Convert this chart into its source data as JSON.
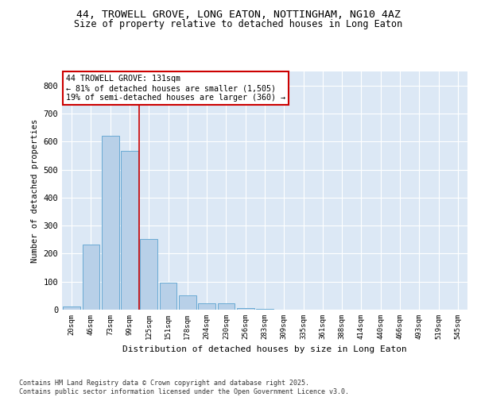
{
  "title_line1": "44, TROWELL GROVE, LONG EATON, NOTTINGHAM, NG10 4AZ",
  "title_line2": "Size of property relative to detached houses in Long Eaton",
  "xlabel": "Distribution of detached houses by size in Long Eaton",
  "ylabel": "Number of detached properties",
  "categories": [
    "20sqm",
    "46sqm",
    "73sqm",
    "99sqm",
    "125sqm",
    "151sqm",
    "178sqm",
    "204sqm",
    "230sqm",
    "256sqm",
    "283sqm",
    "309sqm",
    "335sqm",
    "361sqm",
    "388sqm",
    "414sqm",
    "440sqm",
    "466sqm",
    "493sqm",
    "519sqm",
    "545sqm"
  ],
  "values": [
    10,
    233,
    620,
    567,
    252,
    97,
    50,
    22,
    22,
    7,
    2,
    0,
    0,
    0,
    0,
    0,
    0,
    0,
    0,
    0,
    0
  ],
  "bar_color": "#b8d0e8",
  "bar_edge_color": "#6aaad4",
  "vline_index": 4,
  "vline_color": "#cc0000",
  "annotation_text": "44 TROWELL GROVE: 131sqm\n← 81% of detached houses are smaller (1,505)\n19% of semi-detached houses are larger (360) →",
  "annotation_box_edgecolor": "#cc0000",
  "ylim": [
    0,
    850
  ],
  "yticks": [
    0,
    100,
    200,
    300,
    400,
    500,
    600,
    700,
    800
  ],
  "footnote": "Contains HM Land Registry data © Crown copyright and database right 2025.\nContains public sector information licensed under the Open Government Licence v3.0.",
  "background_color": "#dce8f5",
  "grid_color": "#ffffff",
  "title_fontsize": 9.5,
  "subtitle_fontsize": 8.5,
  "axis_bg": "#dce8f5"
}
